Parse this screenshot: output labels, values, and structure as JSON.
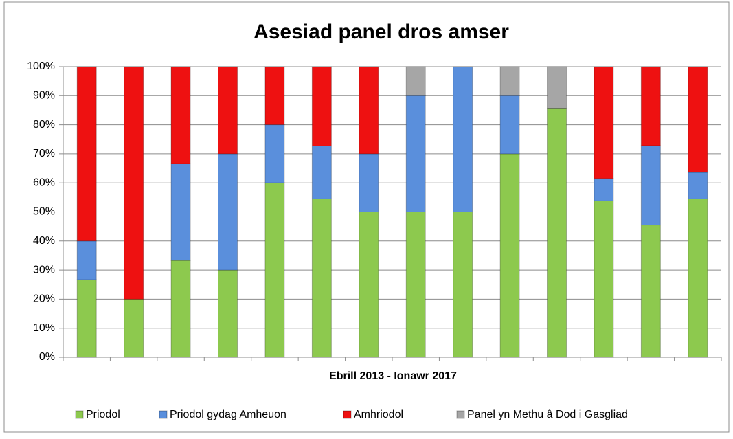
{
  "chart_data": {
    "type": "stacked_bar",
    "title": "Asesiad panel dros amser",
    "x_label": "Ebrill 2013 -  Ionawr 2017",
    "categories": [
      null,
      null,
      null,
      null,
      null,
      null,
      null,
      null,
      null,
      null,
      null,
      null,
      null,
      null
    ],
    "series": [
      {
        "name": "Priodol",
        "color": "#8dc94e",
        "values": [
          26.7,
          20,
          33.3,
          30,
          60,
          54.5,
          50,
          50,
          50,
          70,
          85.7,
          53.8,
          45.5,
          54.5
        ]
      },
      {
        "name": "Priodol gydag Amheuon",
        "color": "#5a8fdc",
        "values": [
          13.3,
          0,
          33.3,
          40,
          20,
          18.2,
          20,
          40,
          50,
          20,
          0,
          7.7,
          27.3,
          9.1
        ]
      },
      {
        "name": "Amhriodol",
        "color": "#ee1111",
        "values": [
          60,
          80,
          33.4,
          30,
          20,
          27.3,
          30,
          0,
          0,
          0,
          0,
          38.5,
          27.2,
          36.4
        ]
      },
      {
        "name": "Panel yn Methu â Dod i Gasgliad",
        "color": "#a6a6a6",
        "values": [
          0,
          0,
          0,
          0,
          0,
          0,
          0,
          10,
          0,
          10,
          14.3,
          0,
          0,
          0
        ]
      }
    ],
    "ylim": [
      0,
      100
    ],
    "yticks": [
      {
        "value": 0,
        "label": "0%"
      },
      {
        "value": 10,
        "label": "10%"
      },
      {
        "value": 20,
        "label": "20%"
      },
      {
        "value": 30,
        "label": "30%"
      },
      {
        "value": 40,
        "label": "40%"
      },
      {
        "value": 50,
        "label": "50%"
      },
      {
        "value": 60,
        "label": "60%"
      },
      {
        "value": 70,
        "label": "70%"
      },
      {
        "value": 80,
        "label": "80%"
      },
      {
        "value": 90,
        "label": "90%"
      },
      {
        "value": 100,
        "label": "100%"
      }
    ],
    "grid": true,
    "legend": "bottom"
  }
}
